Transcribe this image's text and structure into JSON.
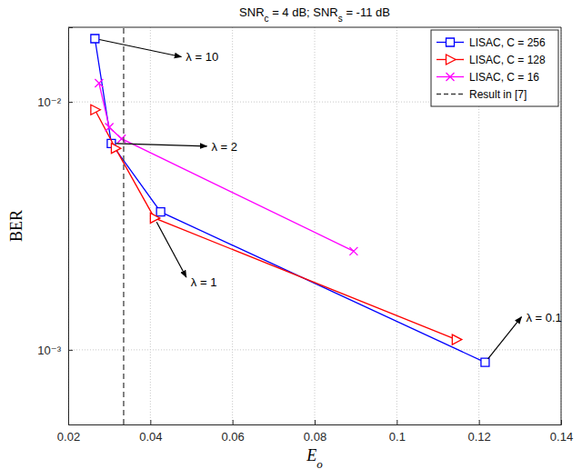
{
  "chart_data": {
    "type": "line",
    "title": "SNRc = 4 dB; SNRs = -11 dB",
    "x_label": "Eo",
    "y_label": "BER",
    "log": "y",
    "grid": true,
    "legend": "top-right",
    "xlim": [
      0.02,
      0.14
    ],
    "xticks": [
      0.02,
      0.04,
      0.06,
      0.08,
      0.1,
      0.12,
      0.14
    ],
    "ylim": [
      0.0005,
      0.02
    ],
    "yticks": [
      {
        "value": 0.001,
        "label": "10⁻³"
      },
      {
        "value": 0.01,
        "label": "10⁻²"
      }
    ],
    "series": [
      {
        "name": "LISAC, C = 256",
        "color": "#0000ff",
        "marker": "square",
        "line_style": "solid",
        "x": [
          0.0265,
          0.0305,
          0.0425,
          0.1215
        ],
        "values": [
          0.018,
          0.0068,
          0.0036,
          0.00089
        ]
      },
      {
        "name": "LISAC, C = 128",
        "color": "#ff0000",
        "marker": "triangle-right",
        "line_style": "solid",
        "x": [
          0.0265,
          0.0315,
          0.041,
          0.1145
        ],
        "values": [
          0.0093,
          0.0065,
          0.0034,
          0.0011
        ]
      },
      {
        "name": "LISAC, C = 16",
        "color": "#ff00ff",
        "marker": "x",
        "line_style": "solid",
        "x": [
          0.0275,
          0.03,
          0.033,
          0.0895
        ],
        "values": [
          0.0119,
          0.0079,
          0.0071,
          0.0025
        ]
      },
      {
        "name": "Result in [7]",
        "color": "#404040",
        "line_style": "dashed",
        "x": [
          0.0335,
          0.0335
        ],
        "values": [
          0.0005,
          0.02
        ]
      }
    ],
    "annotations": [
      {
        "text": "λ = 10",
        "x": 0.0265,
        "y": 0.018
      },
      {
        "text": "λ = 2",
        "x": 0.0305,
        "y": 0.0068
      },
      {
        "text": "λ = 1",
        "x": 0.041,
        "y": 0.0034
      },
      {
        "text": "λ = 0.1",
        "x": 0.1215,
        "y": 0.00089
      }
    ]
  }
}
